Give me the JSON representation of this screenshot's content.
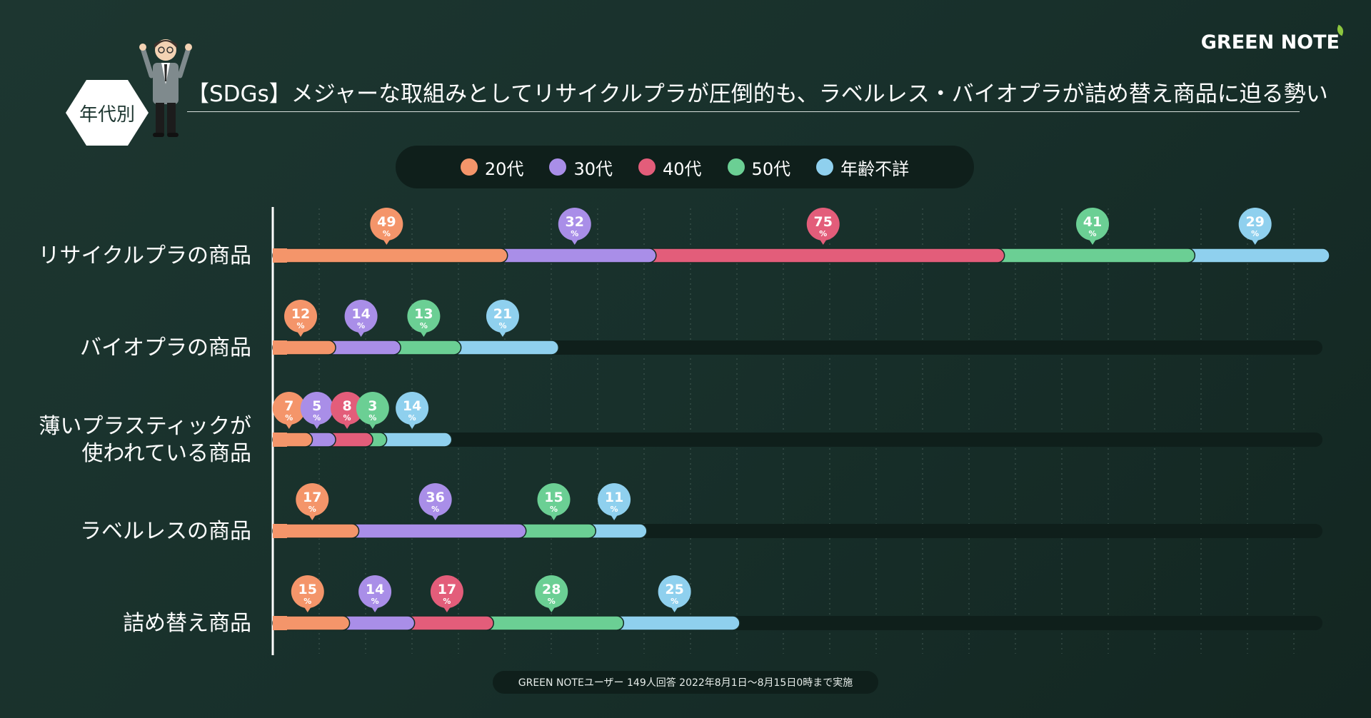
{
  "brand": "GREEN NOTE",
  "badge": "年代別",
  "title": "【SDGs】メジャーな取組みとしてリサイクルプラが圧倒的も、ラベルレス・バイオプラが詰め替え商品に迫る勢い",
  "footer": "GREEN NOTEユーザー 149人回答 2022年8月1日〜8月15日0時まで実施",
  "unit": "%",
  "chart_data": {
    "type": "bar",
    "orientation": "horizontal",
    "stacked": true,
    "categories": [
      [
        "リサイクルプラの商品"
      ],
      [
        "バイオプラの商品"
      ],
      [
        "薄いプラスティックが",
        "使われている商品"
      ],
      [
        "ラベルレスの商品"
      ],
      [
        "詰め替え商品"
      ]
    ],
    "series": [
      {
        "name": "20代",
        "color": "#f4956a",
        "values": [
          49,
          12,
          7,
          17,
          15
        ]
      },
      {
        "name": "30代",
        "color": "#a98ee8",
        "values": [
          32,
          14,
          5,
          36,
          14
        ]
      },
      {
        "name": "40代",
        "color": "#e35d7a",
        "values": [
          75,
          0,
          8,
          0,
          17
        ]
      },
      {
        "name": "50代",
        "color": "#6bcf94",
        "values": [
          41,
          13,
          3,
          15,
          28
        ]
      },
      {
        "name": "年齢不詳",
        "color": "#8fd0ee",
        "values": [
          29,
          21,
          14,
          11,
          25
        ]
      }
    ],
    "xlim": [
      0,
      226
    ],
    "legend": "top-center",
    "grid": true
  }
}
